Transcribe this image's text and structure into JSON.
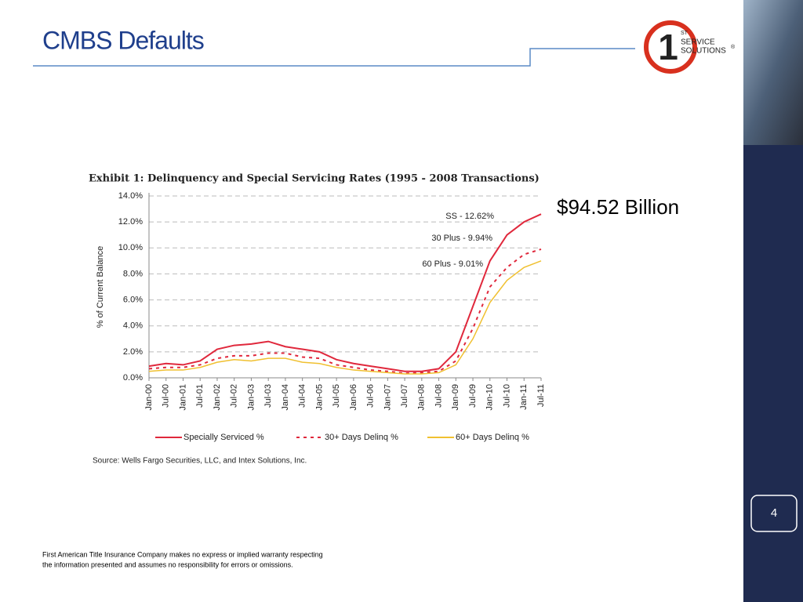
{
  "slide": {
    "title": "CMBS Defaults",
    "headline": "$94.52 Billion",
    "page_number": "4",
    "logo": {
      "number": "1",
      "suffix": "ST",
      "line1": "SERVICE",
      "line2": "SOLUTIONS",
      "mark": "®"
    },
    "disclaimer": [
      "First American Title Insurance Company makes no express or implied warranty respecting",
      "the information presented and assumes no responsibility for errors or omissions."
    ]
  },
  "chart_data": {
    "type": "line",
    "title": "Exhibit 1: Delinquency and Special Servicing Rates (1995 - 2008 Transactions)",
    "ylabel": "% of Current Balance",
    "source": "Source: Wells Fargo Securities, LLC, and Intex Solutions, Inc.",
    "categories": [
      "Jan-00",
      "Jul-00",
      "Jan-01",
      "Jul-01",
      "Jan-02",
      "Jul-02",
      "Jan-03",
      "Jul-03",
      "Jan-04",
      "Jul-04",
      "Jan-05",
      "Jul-05",
      "Jan-06",
      "Jul-06",
      "Jan-07",
      "Jul-07",
      "Jan-08",
      "Jul-08",
      "Jan-09",
      "Jul-09",
      "Jan-10",
      "Jul-10",
      "Jan-11",
      "Jul-11"
    ],
    "series": [
      {
        "name": "Specially Serviced %",
        "color": "#e0283c",
        "dash": false,
        "values": [
          0.9,
          1.1,
          1.0,
          1.3,
          2.2,
          2.5,
          2.6,
          2.8,
          2.4,
          2.2,
          2.0,
          1.4,
          1.1,
          0.9,
          0.7,
          0.5,
          0.5,
          0.7,
          2.0,
          5.5,
          9.0,
          11.0,
          12.0,
          12.6
        ]
      },
      {
        "name": "30+ Days Delinq %",
        "color": "#e0283c",
        "dash": true,
        "values": [
          0.7,
          0.8,
          0.8,
          1.0,
          1.5,
          1.7,
          1.7,
          1.9,
          1.9,
          1.6,
          1.5,
          1.0,
          0.8,
          0.6,
          0.5,
          0.35,
          0.4,
          0.5,
          1.3,
          3.8,
          7.0,
          8.5,
          9.5,
          9.9
        ]
      },
      {
        "name": "60+ Days Delinq %",
        "color": "#f0c030",
        "dash": false,
        "values": [
          0.5,
          0.6,
          0.6,
          0.8,
          1.2,
          1.4,
          1.3,
          1.5,
          1.5,
          1.2,
          1.1,
          0.8,
          0.6,
          0.5,
          0.4,
          0.3,
          0.3,
          0.4,
          1.0,
          3.0,
          5.8,
          7.5,
          8.5,
          9.0
        ]
      }
    ],
    "annotations": [
      "SS - 12.62%",
      "30 Plus - 9.94%",
      "60 Plus - 9.01%"
    ],
    "ylim": [
      0,
      14
    ],
    "yticks": [
      {
        "value": 0,
        "label": "0.0%"
      },
      {
        "value": 2,
        "label": "2.0%"
      },
      {
        "value": 4,
        "label": "4.0%"
      },
      {
        "value": 6,
        "label": "6.0%"
      },
      {
        "value": 8,
        "label": "8.0%"
      },
      {
        "value": 10,
        "label": "10.0%"
      },
      {
        "value": 12,
        "label": "12.0%"
      },
      {
        "value": 14,
        "label": "14.0%"
      }
    ],
    "grid": true
  }
}
